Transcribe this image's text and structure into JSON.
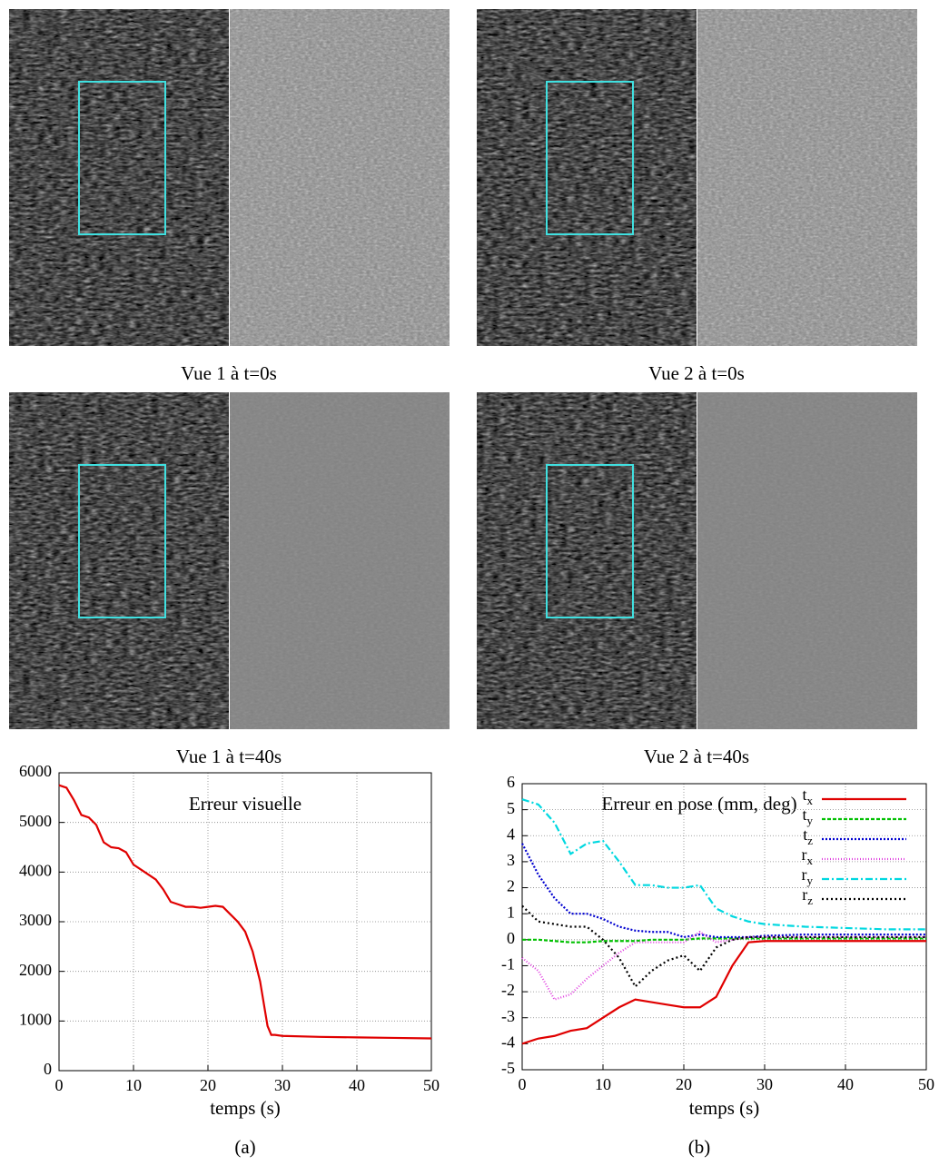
{
  "panels": [
    {
      "caption": "Vue 1 à t=0s"
    },
    {
      "caption": "Vue 2 à t=0s"
    },
    {
      "caption": "Vue 1 à t=40s"
    },
    {
      "caption": "Vue 2 à t=40s"
    }
  ],
  "chart_data": [
    {
      "type": "line",
      "title": "Erreur visuelle",
      "xlabel": "temps (s)",
      "caption": "(a)",
      "x": [
        0,
        1,
        2,
        3,
        4,
        5,
        6,
        7,
        8,
        9,
        10,
        11,
        12,
        13,
        14,
        15,
        16,
        17,
        18,
        19,
        20,
        21,
        22,
        23,
        24,
        25,
        26,
        27,
        28,
        28.5,
        29,
        30,
        35,
        40,
        45,
        50
      ],
      "series": [
        {
          "name": null,
          "color": "#e00000",
          "dash": null,
          "values": [
            5750,
            5700,
            5450,
            5150,
            5100,
            4950,
            4600,
            4500,
            4480,
            4400,
            4150,
            4050,
            3950,
            3850,
            3650,
            3400,
            3350,
            3300,
            3300,
            3280,
            3300,
            3320,
            3300,
            3150,
            3000,
            2800,
            2400,
            1800,
            900,
            720,
            720,
            700,
            680,
            670,
            660,
            650
          ]
        }
      ],
      "xlim": [
        0,
        50
      ],
      "xticks": [
        0,
        10,
        20,
        30,
        40,
        50
      ],
      "ylim": [
        0,
        6000
      ],
      "yticks": [
        0,
        1000,
        2000,
        3000,
        4000,
        5000,
        6000
      ],
      "grid": true
    },
    {
      "type": "line",
      "title": "Erreur en pose (mm, deg)",
      "xlabel": "temps (s)",
      "caption": "(b)",
      "x": [
        0,
        2,
        4,
        6,
        8,
        10,
        12,
        14,
        16,
        18,
        20,
        22,
        24,
        26,
        28,
        30,
        35,
        40,
        45,
        50
      ],
      "series": [
        {
          "name": "tx",
          "color": "#e00000",
          "dash": null,
          "values": [
            -4.0,
            -3.8,
            -3.7,
            -3.5,
            -3.4,
            -3.0,
            -2.6,
            -2.3,
            -2.4,
            -2.5,
            -2.6,
            -2.6,
            -2.2,
            -1.0,
            -0.1,
            -0.05,
            -0.05,
            -0.05,
            -0.05,
            -0.05
          ]
        },
        {
          "name": "ty",
          "color": "#00c000",
          "dash": "4,2",
          "values": [
            0,
            0,
            -0.05,
            -0.1,
            -0.1,
            -0.05,
            -0.05,
            -0.05,
            0,
            0,
            0,
            0.05,
            0.05,
            0.05,
            0.05,
            0.05,
            0.05,
            0.05,
            0.05,
            0.05
          ]
        },
        {
          "name": "tz",
          "color": "#0000d0",
          "dash": "2,2",
          "values": [
            3.7,
            2.5,
            1.6,
            1.0,
            1.0,
            0.8,
            0.5,
            0.35,
            0.3,
            0.3,
            0.1,
            0.2,
            0.1,
            0.1,
            0.1,
            0.15,
            0.2,
            0.2,
            0.2,
            0.2
          ]
        },
        {
          "name": "rx",
          "color": "#e040e0",
          "dash": "1,2",
          "values": [
            -0.7,
            -1.2,
            -2.3,
            -2.1,
            -1.5,
            -1.0,
            -0.5,
            -0.1,
            -0.1,
            -0.1,
            -0.1,
            0.3,
            -0.1,
            0,
            0.1,
            0.1,
            0.1,
            0.1,
            0.1,
            0.1
          ]
        },
        {
          "name": "ry",
          "color": "#00d8e0",
          "dash": "8,3,2,3",
          "values": [
            5.4,
            5.2,
            4.5,
            3.3,
            3.7,
            3.8,
            3.0,
            2.1,
            2.1,
            2.0,
            2.0,
            2.1,
            1.2,
            0.9,
            0.7,
            0.6,
            0.5,
            0.45,
            0.4,
            0.4
          ]
        },
        {
          "name": "rz",
          "color": "#000000",
          "dash": "2,3",
          "values": [
            1.3,
            0.7,
            0.6,
            0.5,
            0.5,
            0.0,
            -0.7,
            -1.8,
            -1.2,
            -0.8,
            -0.6,
            -1.2,
            -0.3,
            0,
            0.1,
            0.1,
            0.1,
            0.1,
            0.1,
            0.1
          ]
        }
      ],
      "xlim": [
        0,
        50
      ],
      "xticks": [
        0,
        10,
        20,
        30,
        40,
        50
      ],
      "ylim": [
        -5,
        6
      ],
      "yticks": [
        -5,
        -4,
        -3,
        -2,
        -1,
        0,
        1,
        2,
        3,
        4,
        5,
        6
      ],
      "grid": true,
      "legend": "top-right"
    }
  ]
}
